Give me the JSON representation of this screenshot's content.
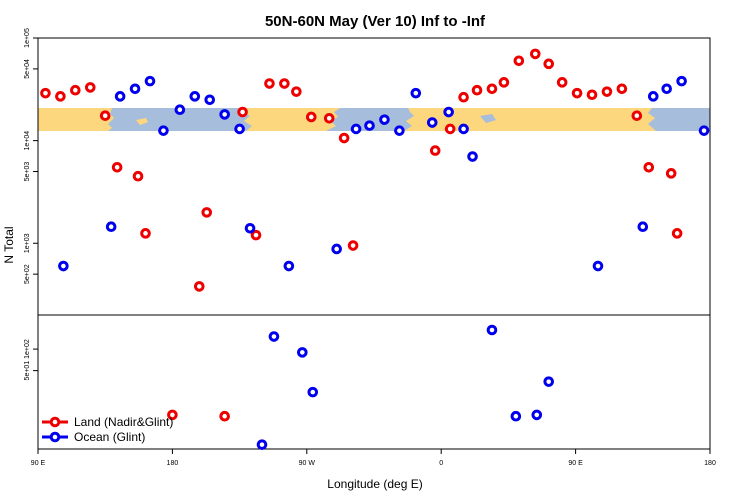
{
  "chart_data": {
    "type": "scatter",
    "title": "50N-60N May (Ver 10)   Inf to -Inf",
    "xlabel": "Longitude (deg E)",
    "ylabel": "N Total",
    "x_range": [
      90,
      540
    ],
    "x_ticks": [
      {
        "value": 90,
        "label": "90 E"
      },
      {
        "value": 180,
        "label": "180"
      },
      {
        "value": 270,
        "label": "90 W"
      },
      {
        "value": 360,
        "label": "0"
      },
      {
        "value": 450,
        "label": "90 E"
      },
      {
        "value": 540,
        "label": "180"
      }
    ],
    "upper_panel": {
      "scale": "log",
      "ylim": [
        200,
        100000
      ],
      "y_ticks": [
        {
          "value": 500,
          "label": "5e+02"
        },
        {
          "value": 1000,
          "label": "1e+03"
        },
        {
          "value": 5000,
          "label": "5e+03"
        },
        {
          "value": 10000,
          "label": "1e+04"
        },
        {
          "value": 50000,
          "label": "5e+04"
        },
        {
          "value": 100000,
          "label": "1e+05"
        }
      ]
    },
    "lower_panel": {
      "scale": "log",
      "ylim": [
        4,
        300
      ],
      "y_ticks": [
        {
          "value": 50,
          "label": "5e+01"
        },
        {
          "value": 100,
          "label": "1e+02"
        }
      ]
    },
    "series": [
      {
        "name": "Land (Nadir&Glint)",
        "color": "#ee0000",
        "points": [
          {
            "x": 95,
            "y": 29000,
            "panel": "upper"
          },
          {
            "x": 105,
            "y": 27000,
            "panel": "upper"
          },
          {
            "x": 115,
            "y": 31000,
            "panel": "upper"
          },
          {
            "x": 125,
            "y": 33000,
            "panel": "upper"
          },
          {
            "x": 135,
            "y": 17500,
            "panel": "upper"
          },
          {
            "x": 143,
            "y": 5500,
            "panel": "upper"
          },
          {
            "x": 157,
            "y": 4500,
            "panel": "upper"
          },
          {
            "x": 162,
            "y": 1250,
            "panel": "upper"
          },
          {
            "x": 180,
            "y": 12,
            "panel": "lower"
          },
          {
            "x": 198,
            "y": 380,
            "panel": "upper"
          },
          {
            "x": 203,
            "y": 2000,
            "panel": "upper"
          },
          {
            "x": 215,
            "y": 11.5,
            "panel": "lower"
          },
          {
            "x": 227,
            "y": 19000,
            "panel": "upper"
          },
          {
            "x": 236,
            "y": 1200,
            "panel": "upper"
          },
          {
            "x": 245,
            "y": 36000,
            "panel": "upper"
          },
          {
            "x": 255,
            "y": 36000,
            "panel": "upper"
          },
          {
            "x": 263,
            "y": 30000,
            "panel": "upper"
          },
          {
            "x": 273,
            "y": 17000,
            "panel": "upper"
          },
          {
            "x": 285,
            "y": 16500,
            "panel": "upper"
          },
          {
            "x": 295,
            "y": 10600,
            "panel": "upper"
          },
          {
            "x": 301,
            "y": 950,
            "panel": "upper"
          },
          {
            "x": 356,
            "y": 8000,
            "panel": "upper"
          },
          {
            "x": 366,
            "y": 13000,
            "panel": "upper"
          },
          {
            "x": 375,
            "y": 26500,
            "panel": "upper"
          },
          {
            "x": 384,
            "y": 31000,
            "panel": "upper"
          },
          {
            "x": 394,
            "y": 32000,
            "panel": "upper"
          },
          {
            "x": 402,
            "y": 37000,
            "panel": "upper"
          },
          {
            "x": 412,
            "y": 60000,
            "panel": "upper"
          },
          {
            "x": 423,
            "y": 70000,
            "panel": "upper"
          },
          {
            "x": 432,
            "y": 56000,
            "panel": "upper"
          },
          {
            "x": 441,
            "y": 37000,
            "panel": "upper"
          },
          {
            "x": 451,
            "y": 29000,
            "panel": "upper"
          },
          {
            "x": 461,
            "y": 28000,
            "panel": "upper"
          },
          {
            "x": 471,
            "y": 30000,
            "panel": "upper"
          },
          {
            "x": 481,
            "y": 32000,
            "panel": "upper"
          },
          {
            "x": 491,
            "y": 17500,
            "panel": "upper"
          },
          {
            "x": 499,
            "y": 5500,
            "panel": "upper"
          },
          {
            "x": 514,
            "y": 4800,
            "panel": "upper"
          },
          {
            "x": 518,
            "y": 1250,
            "panel": "upper"
          }
        ]
      },
      {
        "name": "Ocean (Glint)",
        "color": "#0000ee",
        "points": [
          {
            "x": 107,
            "y": 600,
            "panel": "upper"
          },
          {
            "x": 139,
            "y": 1450,
            "panel": "upper"
          },
          {
            "x": 145,
            "y": 27000,
            "panel": "upper"
          },
          {
            "x": 155,
            "y": 32000,
            "panel": "upper"
          },
          {
            "x": 165,
            "y": 38000,
            "panel": "upper"
          },
          {
            "x": 174,
            "y": 12500,
            "panel": "upper"
          },
          {
            "x": 185,
            "y": 20000,
            "panel": "upper"
          },
          {
            "x": 195,
            "y": 27000,
            "panel": "upper"
          },
          {
            "x": 205,
            "y": 25000,
            "panel": "upper"
          },
          {
            "x": 215,
            "y": 18000,
            "panel": "upper"
          },
          {
            "x": 225,
            "y": 13000,
            "panel": "upper"
          },
          {
            "x": 232,
            "y": 1400,
            "panel": "upper"
          },
          {
            "x": 240,
            "y": 4.6,
            "panel": "lower"
          },
          {
            "x": 248,
            "y": 150,
            "panel": "lower"
          },
          {
            "x": 258,
            "y": 600,
            "panel": "upper"
          },
          {
            "x": 267,
            "y": 90,
            "panel": "lower"
          },
          {
            "x": 274,
            "y": 25,
            "panel": "lower"
          },
          {
            "x": 290,
            "y": 880,
            "panel": "upper"
          },
          {
            "x": 303,
            "y": 13000,
            "panel": "upper"
          },
          {
            "x": 312,
            "y": 14000,
            "panel": "upper"
          },
          {
            "x": 322,
            "y": 16000,
            "panel": "upper"
          },
          {
            "x": 332,
            "y": 12500,
            "panel": "upper"
          },
          {
            "x": 343,
            "y": 29000,
            "panel": "upper"
          },
          {
            "x": 354,
            "y": 15000,
            "panel": "upper"
          },
          {
            "x": 365,
            "y": 19000,
            "panel": "upper"
          },
          {
            "x": 375,
            "y": 13000,
            "panel": "upper"
          },
          {
            "x": 381,
            "y": 7000,
            "panel": "upper"
          },
          {
            "x": 394,
            "y": 185,
            "panel": "lower"
          },
          {
            "x": 410,
            "y": 11.5,
            "panel": "lower"
          },
          {
            "x": 424,
            "y": 12,
            "panel": "lower"
          },
          {
            "x": 432,
            "y": 35,
            "panel": "lower"
          },
          {
            "x": 465,
            "y": 600,
            "panel": "upper"
          },
          {
            "x": 495,
            "y": 1450,
            "panel": "upper"
          },
          {
            "x": 502,
            "y": 27000,
            "panel": "upper"
          },
          {
            "x": 511,
            "y": 32000,
            "panel": "upper"
          },
          {
            "x": 521,
            "y": 38000,
            "panel": "upper"
          },
          {
            "x": 536,
            "y": 12500,
            "panel": "upper"
          }
        ]
      }
    ],
    "legend": {
      "position": "bottom-left",
      "entries": [
        "Land (Nadir&Glint)",
        "Ocean (Glint)"
      ]
    },
    "map_band": {
      "description_label": "world map strip",
      "ocean_color": "#a7bddc",
      "land_color": "#fcd77d"
    }
  }
}
